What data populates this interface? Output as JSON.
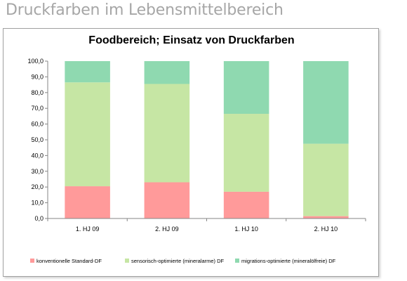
{
  "page": {
    "heading": "Druckfarben im Lebensmittelbereich"
  },
  "chart_data": {
    "type": "bar",
    "stacked": true,
    "title": "Foodbereich; Einsatz von Druckfarben",
    "xlabel": "",
    "ylabel": "",
    "categories": [
      "1. HJ 09",
      "2. HJ 09",
      "1. HJ 10",
      "2. HJ 10"
    ],
    "ylim": [
      0,
      100
    ],
    "yticks": [
      "0,0",
      "10,0",
      "20,0",
      "30,0",
      "40,0",
      "50,0",
      "60,0",
      "70,0",
      "80,0",
      "90,0",
      "100,0"
    ],
    "grid": false,
    "legend_position": "bottom",
    "series": [
      {
        "name": "konventionelle Standard-DF",
        "color": "#ff9a9a",
        "values": [
          20.5,
          23.0,
          17.0,
          1.5
        ]
      },
      {
        "name": "sensorisch-optimierte (mineralarme) DF",
        "color": "#c6e6a4",
        "values": [
          66.0,
          62.5,
          49.5,
          46.0
        ]
      },
      {
        "name": "migrations-optimierte (mineralölfreie) DF",
        "color": "#8fd9b0",
        "values": [
          13.5,
          14.5,
          33.5,
          52.5
        ]
      }
    ]
  }
}
